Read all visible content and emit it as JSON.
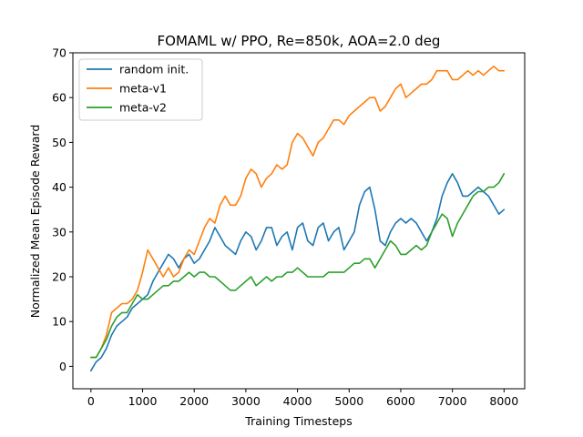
{
  "chart_data": {
    "type": "line",
    "title": "FOMAML w/ PPO, Re=850k, AOA=2.0 deg",
    "xlabel": "Training Timesteps",
    "ylabel": "Normalized Mean Episode Reward",
    "xlim": [
      -350,
      8400
    ],
    "ylim": [
      -5,
      70
    ],
    "xticks": [
      0,
      1000,
      2000,
      3000,
      4000,
      5000,
      6000,
      7000,
      8000
    ],
    "yticks": [
      0,
      10,
      20,
      30,
      40,
      50,
      60,
      70
    ],
    "grid": false,
    "legend_position": "upper-left",
    "series": [
      {
        "name": "random init.",
        "color": "#1f77b4",
        "x": [
          0,
          100,
          200,
          300,
          400,
          500,
          600,
          700,
          800,
          900,
          1000,
          1100,
          1200,
          1300,
          1400,
          1500,
          1600,
          1700,
          1800,
          1900,
          2000,
          2100,
          2200,
          2300,
          2400,
          2500,
          2600,
          2700,
          2800,
          2900,
          3000,
          3100,
          3200,
          3300,
          3400,
          3500,
          3600,
          3700,
          3800,
          3900,
          4000,
          4100,
          4200,
          4300,
          4400,
          4500,
          4600,
          4700,
          4800,
          4900,
          5000,
          5100,
          5200,
          5300,
          5400,
          5500,
          5600,
          5700,
          5800,
          5900,
          6000,
          6100,
          6200,
          6300,
          6400,
          6500,
          6600,
          6700,
          6800,
          6900,
          7000,
          7100,
          7200,
          7300,
          7400,
          7500,
          7600,
          7700,
          7800,
          7900,
          8000
        ],
        "values": [
          -1,
          1,
          2,
          4,
          7,
          9,
          10,
          11,
          13,
          14,
          15,
          16,
          19,
          21,
          23,
          25,
          24,
          22,
          24,
          25,
          23,
          24,
          26,
          28,
          31,
          29,
          27,
          26,
          25,
          28,
          30,
          29,
          26,
          28,
          31,
          31,
          27,
          29,
          30,
          26,
          31,
          32,
          28,
          27,
          31,
          32,
          28,
          30,
          31,
          26,
          28,
          30,
          36,
          39,
          40,
          35,
          28,
          27,
          30,
          32,
          33,
          32,
          33,
          32,
          30,
          28,
          30,
          33,
          38,
          41,
          43,
          41,
          38,
          38,
          39,
          40,
          39,
          38,
          36,
          34,
          35
        ]
      },
      {
        "name": "meta-v1",
        "color": "#ff7f0e",
        "x": [
          0,
          100,
          200,
          300,
          400,
          500,
          600,
          700,
          800,
          900,
          1000,
          1100,
          1200,
          1300,
          1400,
          1500,
          1600,
          1700,
          1800,
          1900,
          2000,
          2100,
          2200,
          2300,
          2400,
          2500,
          2600,
          2700,
          2800,
          2900,
          3000,
          3100,
          3200,
          3300,
          3400,
          3500,
          3600,
          3700,
          3800,
          3900,
          4000,
          4100,
          4200,
          4300,
          4400,
          4500,
          4600,
          4700,
          4800,
          4900,
          5000,
          5100,
          5200,
          5300,
          5400,
          5500,
          5600,
          5700,
          5800,
          5900,
          6000,
          6100,
          6200,
          6300,
          6400,
          6500,
          6600,
          6700,
          6800,
          6900,
          7000,
          7100,
          7200,
          7300,
          7400,
          7500,
          7600,
          7700,
          7800,
          7900,
          8000
        ],
        "values": [
          2,
          2,
          4,
          7,
          12,
          13,
          14,
          14,
          15,
          17,
          21,
          26,
          24,
          22,
          20,
          22,
          20,
          21,
          24,
          26,
          25,
          28,
          31,
          33,
          32,
          36,
          38,
          36,
          36,
          38,
          42,
          44,
          43,
          40,
          42,
          43,
          45,
          44,
          45,
          50,
          52,
          51,
          49,
          47,
          50,
          51,
          53,
          55,
          55,
          54,
          56,
          57,
          58,
          59,
          60,
          60,
          57,
          58,
          60,
          62,
          63,
          60,
          61,
          62,
          63,
          63,
          64,
          66,
          66,
          66,
          64,
          64,
          65,
          66,
          65,
          66,
          65,
          66,
          67,
          66,
          66
        ]
      },
      {
        "name": "meta-v2",
        "color": "#2ca02c",
        "x": [
          0,
          100,
          200,
          300,
          400,
          500,
          600,
          700,
          800,
          900,
          1000,
          1100,
          1200,
          1300,
          1400,
          1500,
          1600,
          1700,
          1800,
          1900,
          2000,
          2100,
          2200,
          2300,
          2400,
          2500,
          2600,
          2700,
          2800,
          2900,
          3000,
          3100,
          3200,
          3300,
          3400,
          3500,
          3600,
          3700,
          3800,
          3900,
          4000,
          4100,
          4200,
          4300,
          4400,
          4500,
          4600,
          4700,
          4800,
          4900,
          5000,
          5100,
          5200,
          5300,
          5400,
          5500,
          5600,
          5700,
          5800,
          5900,
          6000,
          6100,
          6200,
          6300,
          6400,
          6500,
          6600,
          6700,
          6800,
          6900,
          7000,
          7100,
          7200,
          7300,
          7400,
          7500,
          7600,
          7700,
          7800,
          7900,
          8000
        ],
        "values": [
          2,
          2,
          4,
          6,
          9,
          11,
          12,
          12,
          14,
          16,
          15,
          15,
          16,
          17,
          18,
          18,
          19,
          19,
          20,
          21,
          20,
          21,
          21,
          20,
          20,
          19,
          18,
          17,
          17,
          18,
          19,
          20,
          18,
          19,
          20,
          19,
          20,
          20,
          21,
          21,
          22,
          21,
          20,
          20,
          20,
          20,
          21,
          21,
          21,
          21,
          22,
          23,
          23,
          24,
          24,
          22,
          24,
          26,
          28,
          27,
          25,
          25,
          26,
          27,
          26,
          27,
          30,
          32,
          34,
          33,
          29,
          32,
          34,
          36,
          38,
          39,
          39,
          40,
          40,
          41,
          43
        ]
      }
    ]
  }
}
